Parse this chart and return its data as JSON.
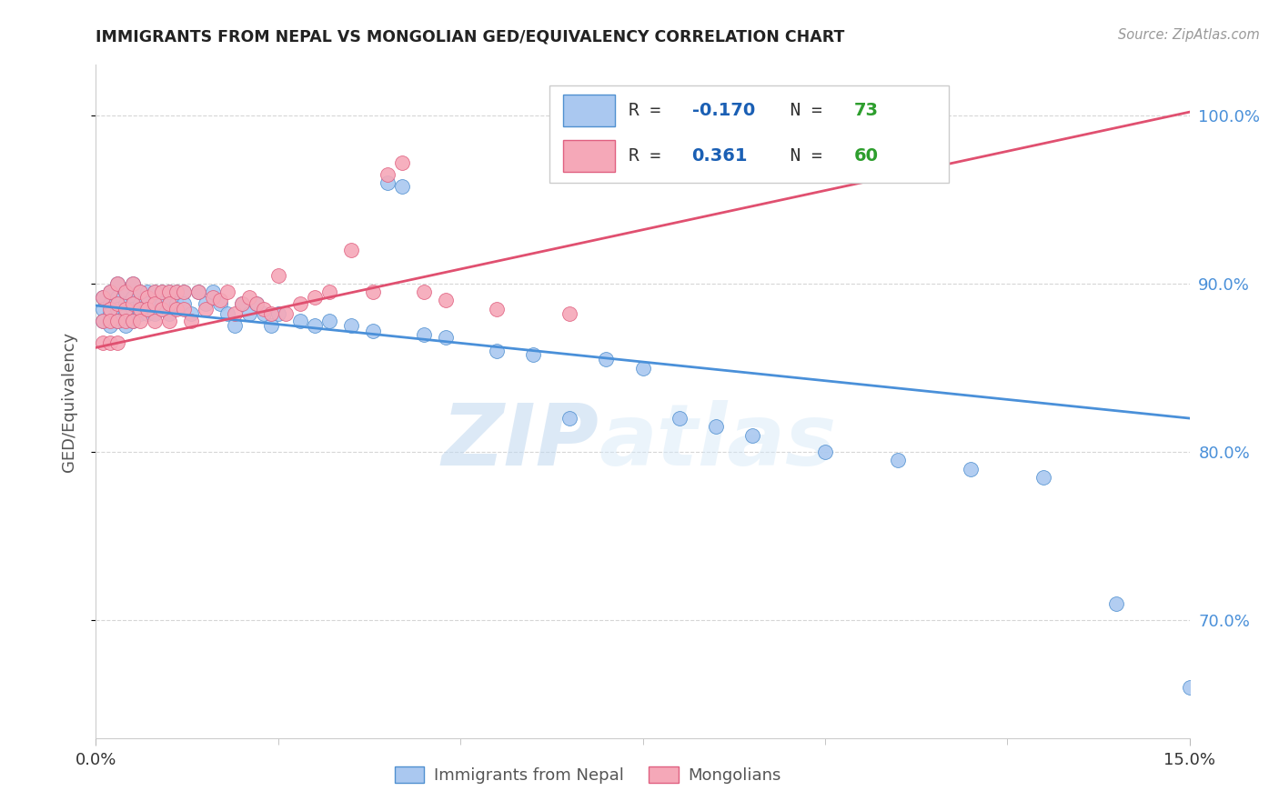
{
  "title": "IMMIGRANTS FROM NEPAL VS MONGOLIAN GED/EQUIVALENCY CORRELATION CHART",
  "source": "Source: ZipAtlas.com",
  "ylabel": "GED/Equivalency",
  "xlim": [
    0.0,
    0.15
  ],
  "ylim": [
    0.63,
    1.03
  ],
  "yticks": [
    0.7,
    0.8,
    0.9,
    1.0
  ],
  "ytick_labels": [
    "70.0%",
    "80.0%",
    "90.0%",
    "100.0%"
  ],
  "right_axis_color": "#4a90d9",
  "nepal_color": "#aac8f0",
  "mongolia_color": "#f5a8b8",
  "nepal_edge_color": "#5090d0",
  "mongolia_edge_color": "#e06080",
  "nepal_line_color": "#4a90d9",
  "mongolia_line_color": "#e05070",
  "nepal_R": -0.17,
  "nepal_N": 73,
  "mongolia_R": 0.361,
  "mongolia_N": 60,
  "legend_R_color": "#1a5fb4",
  "legend_N_color": "#2d9e2d",
  "nepal_trend_x0": 0.0,
  "nepal_trend_y0": 0.887,
  "nepal_trend_x1": 0.15,
  "nepal_trend_y1": 0.82,
  "mongolia_trend_x0": 0.0,
  "mongolia_trend_y0": 0.862,
  "mongolia_trend_x1": 0.15,
  "mongolia_trend_y1": 1.002,
  "nepal_scatter_x": [
    0.001,
    0.001,
    0.001,
    0.002,
    0.002,
    0.002,
    0.002,
    0.003,
    0.003,
    0.003,
    0.003,
    0.004,
    0.004,
    0.004,
    0.004,
    0.005,
    0.005,
    0.005,
    0.005,
    0.006,
    0.006,
    0.006,
    0.007,
    0.007,
    0.007,
    0.008,
    0.008,
    0.008,
    0.009,
    0.009,
    0.01,
    0.01,
    0.01,
    0.011,
    0.011,
    0.012,
    0.012,
    0.013,
    0.014,
    0.015,
    0.016,
    0.017,
    0.018,
    0.019,
    0.02,
    0.021,
    0.022,
    0.023,
    0.024,
    0.025,
    0.028,
    0.03,
    0.032,
    0.035,
    0.038,
    0.04,
    0.042,
    0.045,
    0.048,
    0.055,
    0.06,
    0.065,
    0.07,
    0.075,
    0.08,
    0.085,
    0.09,
    0.1,
    0.11,
    0.12,
    0.13,
    0.14,
    0.15
  ],
  "nepal_scatter_y": [
    0.892,
    0.885,
    0.878,
    0.895,
    0.888,
    0.882,
    0.875,
    0.9,
    0.892,
    0.885,
    0.878,
    0.895,
    0.888,
    0.882,
    0.875,
    0.9,
    0.892,
    0.885,
    0.878,
    0.895,
    0.888,
    0.882,
    0.895,
    0.888,
    0.882,
    0.895,
    0.888,
    0.882,
    0.895,
    0.888,
    0.895,
    0.888,
    0.882,
    0.895,
    0.888,
    0.895,
    0.888,
    0.882,
    0.895,
    0.888,
    0.895,
    0.888,
    0.882,
    0.875,
    0.888,
    0.882,
    0.888,
    0.882,
    0.875,
    0.882,
    0.878,
    0.875,
    0.878,
    0.875,
    0.872,
    0.96,
    0.958,
    0.87,
    0.868,
    0.86,
    0.858,
    0.82,
    0.855,
    0.85,
    0.82,
    0.815,
    0.81,
    0.8,
    0.795,
    0.79,
    0.785,
    0.71,
    0.66
  ],
  "mongolia_scatter_x": [
    0.001,
    0.001,
    0.001,
    0.002,
    0.002,
    0.002,
    0.002,
    0.003,
    0.003,
    0.003,
    0.003,
    0.004,
    0.004,
    0.004,
    0.005,
    0.005,
    0.005,
    0.006,
    0.006,
    0.006,
    0.007,
    0.007,
    0.008,
    0.008,
    0.008,
    0.009,
    0.009,
    0.01,
    0.01,
    0.01,
    0.011,
    0.011,
    0.012,
    0.012,
    0.013,
    0.014,
    0.015,
    0.016,
    0.017,
    0.018,
    0.019,
    0.02,
    0.021,
    0.022,
    0.023,
    0.024,
    0.025,
    0.026,
    0.028,
    0.03,
    0.032,
    0.035,
    0.038,
    0.04,
    0.042,
    0.045,
    0.048,
    0.055,
    0.065,
    0.07
  ],
  "mongolia_scatter_y": [
    0.892,
    0.878,
    0.865,
    0.895,
    0.885,
    0.878,
    0.865,
    0.9,
    0.888,
    0.878,
    0.865,
    0.895,
    0.885,
    0.878,
    0.9,
    0.888,
    0.878,
    0.895,
    0.885,
    0.878,
    0.892,
    0.885,
    0.895,
    0.888,
    0.878,
    0.895,
    0.885,
    0.895,
    0.888,
    0.878,
    0.895,
    0.885,
    0.895,
    0.885,
    0.878,
    0.895,
    0.885,
    0.892,
    0.89,
    0.895,
    0.882,
    0.888,
    0.892,
    0.888,
    0.885,
    0.882,
    0.905,
    0.882,
    0.888,
    0.892,
    0.895,
    0.92,
    0.895,
    0.965,
    0.972,
    0.895,
    0.89,
    0.885,
    0.882,
    0.975
  ],
  "watermark_zip": "ZIP",
  "watermark_atlas": "atlas",
  "background_color": "#ffffff",
  "grid_color": "#cccccc"
}
